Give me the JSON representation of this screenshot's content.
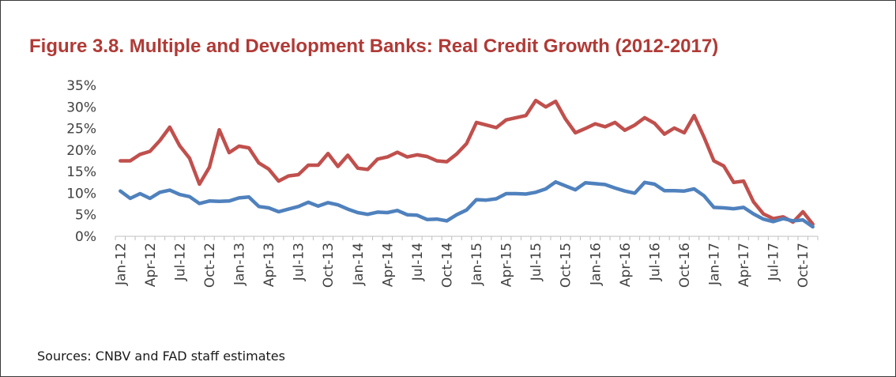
{
  "title": "Figure 3.8.  Multiple and Development Banks: Real Credit Growth (2012-2017)",
  "source": "Sources: CNBV and FAD staff estimates",
  "colors": {
    "title": "#b03a36",
    "series_red": "#c0504d",
    "series_blue": "#4f81bd"
  },
  "chart_data": {
    "type": "line",
    "title": "Figure 3.8.  Multiple and Development Banks: Real Credit Growth (2012-2017)",
    "xlabel": "",
    "ylabel": "",
    "ylim": [
      0,
      0.35
    ],
    "yticks": [
      0,
      0.05,
      0.1,
      0.15,
      0.2,
      0.25,
      0.3,
      0.35
    ],
    "ytick_labels": [
      "0%",
      "5%",
      "10%",
      "15%",
      "20%",
      "25%",
      "30%",
      "35%"
    ],
    "xtick_labels": [
      "Jan-12",
      "Apr-12",
      "Jul-12",
      "Oct-12",
      "Jan-13",
      "Apr-13",
      "Jul-13",
      "Oct-13",
      "Jan-14",
      "Apr-14",
      "Jul-14",
      "Oct-14",
      "Jan-15",
      "Apr-15",
      "Jul-15",
      "Oct-15",
      "Jan-16",
      "Apr-16",
      "Jul-16",
      "Oct-16",
      "Jan-17",
      "Apr-17",
      "Jul-17",
      "Oct-17"
    ],
    "x": [
      "Jan-12",
      "Feb-12",
      "Mar-12",
      "Apr-12",
      "May-12",
      "Jun-12",
      "Jul-12",
      "Aug-12",
      "Sep-12",
      "Oct-12",
      "Nov-12",
      "Dec-12",
      "Jan-13",
      "Feb-13",
      "Mar-13",
      "Apr-13",
      "May-13",
      "Jun-13",
      "Jul-13",
      "Aug-13",
      "Sep-13",
      "Oct-13",
      "Nov-13",
      "Dec-13",
      "Jan-14",
      "Feb-14",
      "Mar-14",
      "Apr-14",
      "May-14",
      "Jun-14",
      "Jul-14",
      "Aug-14",
      "Sep-14",
      "Oct-14",
      "Nov-14",
      "Dec-14",
      "Jan-15",
      "Feb-15",
      "Mar-15",
      "Apr-15",
      "May-15",
      "Jun-15",
      "Jul-15",
      "Aug-15",
      "Sep-15",
      "Oct-15",
      "Nov-15",
      "Dec-15",
      "Jan-16",
      "Feb-16",
      "Mar-16",
      "Apr-16",
      "May-16",
      "Jun-16",
      "Jul-16",
      "Aug-16",
      "Sep-16",
      "Oct-16",
      "Nov-16",
      "Dec-16",
      "Jan-17",
      "Feb-17",
      "Mar-17",
      "Apr-17",
      "May-17",
      "Jun-17",
      "Jul-17",
      "Aug-17",
      "Sep-17",
      "Oct-17",
      "Nov-17"
    ],
    "series": [
      {
        "color": "#c0504d",
        "values": [
          0.175,
          0.175,
          0.19,
          0.197,
          0.222,
          0.253,
          0.21,
          0.181,
          0.121,
          0.16,
          0.247,
          0.194,
          0.209,
          0.205,
          0.17,
          0.156,
          0.128,
          0.14,
          0.143,
          0.165,
          0.165,
          0.192,
          0.162,
          0.188,
          0.158,
          0.155,
          0.179,
          0.184,
          0.195,
          0.184,
          0.189,
          0.185,
          0.175,
          0.173,
          0.191,
          0.215,
          0.264,
          0.258,
          0.252,
          0.27,
          0.275,
          0.28,
          0.315,
          0.3,
          0.313,
          0.272,
          0.24,
          0.25,
          0.261,
          0.254,
          0.264,
          0.246,
          0.258,
          0.275,
          0.262,
          0.237,
          0.251,
          0.24,
          0.28,
          0.23,
          0.175,
          0.163,
          0.125,
          0.128,
          0.08,
          0.052,
          0.041,
          0.045,
          0.033,
          0.057,
          0.028
        ]
      },
      {
        "color": "#4f81bd",
        "values": [
          0.105,
          0.088,
          0.099,
          0.088,
          0.102,
          0.107,
          0.097,
          0.092,
          0.076,
          0.082,
          0.081,
          0.082,
          0.089,
          0.091,
          0.069,
          0.066,
          0.057,
          0.063,
          0.069,
          0.079,
          0.07,
          0.078,
          0.073,
          0.063,
          0.055,
          0.051,
          0.056,
          0.055,
          0.06,
          0.05,
          0.049,
          0.039,
          0.04,
          0.036,
          0.05,
          0.061,
          0.085,
          0.084,
          0.087,
          0.099,
          0.099,
          0.098,
          0.102,
          0.11,
          0.126,
          0.117,
          0.108,
          0.124,
          0.122,
          0.12,
          0.112,
          0.105,
          0.1,
          0.125,
          0.121,
          0.106,
          0.106,
          0.105,
          0.11,
          0.094,
          0.067,
          0.066,
          0.064,
          0.067,
          0.052,
          0.04,
          0.034,
          0.041,
          0.036,
          0.038,
          0.022
        ]
      }
    ],
    "grid": false,
    "legend": "none"
  }
}
